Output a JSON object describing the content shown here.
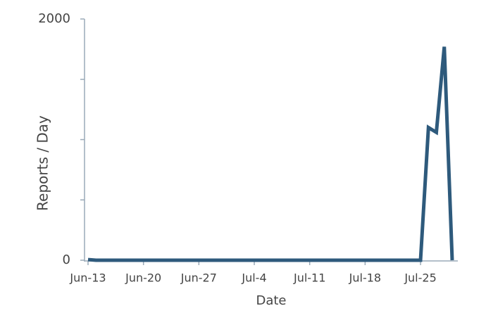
{
  "chart_data": {
    "type": "line",
    "x_label": "Date",
    "y_label": "Reports / Day",
    "x": [
      "Jun-13",
      "Jun-14",
      "Jul-25",
      "Jul-26",
      "Jul-27",
      "Jul-28",
      "Jul-29"
    ],
    "series": [
      {
        "color": "#2e5a7c",
        "values": [
          5,
          0,
          0,
          1100,
          1060,
          1770,
          0
        ]
      }
    ],
    "xlim": [
      "Jun-13",
      "Jul-29"
    ],
    "xticks": [
      "Jun-13",
      "Jun-20",
      "Jun-27",
      "Jul-4",
      "Jul-11",
      "Jul-18",
      "Jul-25"
    ],
    "ylim": [
      0,
      2000
    ],
    "yticks": [
      0,
      2000
    ],
    "minor_yticks": [
      500,
      1000,
      1500
    ]
  }
}
